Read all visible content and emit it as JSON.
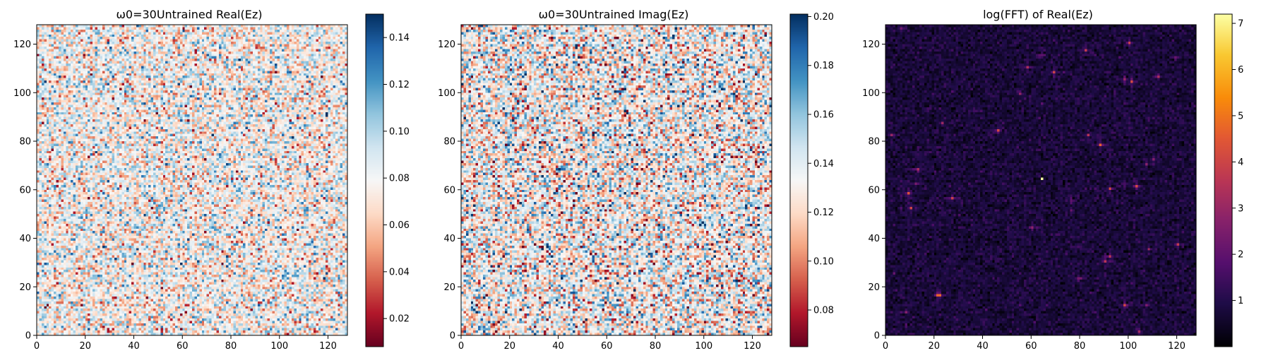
{
  "chart_data": [
    {
      "type": "heatmap",
      "title": "ω0=30Untrained Real(Ez)",
      "xlim": [
        0,
        128
      ],
      "ylim": [
        0,
        128
      ],
      "x_ticks": [
        0,
        20,
        40,
        60,
        80,
        100,
        120
      ],
      "y_ticks": [
        0,
        20,
        40,
        60,
        80,
        100,
        120
      ],
      "grid_size": 128,
      "colormap": "RdBu",
      "vmin": 0.008,
      "vmax": 0.15,
      "mean": 0.079,
      "spread": 0.022,
      "colorbar_ticks": [
        0.02,
        0.04,
        0.06,
        0.08,
        0.1,
        0.12,
        0.14
      ],
      "colorbar_tick_labels": [
        "0.02",
        "0.04",
        "0.06",
        "0.08",
        "0.10",
        "0.12",
        "0.14"
      ],
      "grid": false,
      "colorbar_position": "right"
    },
    {
      "type": "heatmap",
      "title": "ω0=30Untrained Imag(Ez)",
      "xlim": [
        0,
        128
      ],
      "ylim": [
        0,
        128
      ],
      "x_ticks": [
        0,
        20,
        40,
        60,
        80,
        100,
        120
      ],
      "y_ticks": [
        0,
        20,
        40,
        60,
        80,
        100,
        120
      ],
      "grid_size": 128,
      "colormap": "RdBu",
      "vmin": 0.065,
      "vmax": 0.201,
      "mean": 0.133,
      "spread": 0.026,
      "colorbar_ticks": [
        0.08,
        0.1,
        0.12,
        0.14,
        0.16,
        0.18,
        0.2
      ],
      "colorbar_tick_labels": [
        "0.08",
        "0.10",
        "0.12",
        "0.14",
        "0.16",
        "0.18",
        "0.20"
      ],
      "grid": false,
      "colorbar_position": "right"
    },
    {
      "type": "heatmap",
      "title": "log(FFT) of Real(Ez)",
      "xlim": [
        0,
        128
      ],
      "ylim": [
        0,
        128
      ],
      "x_ticks": [
        0,
        20,
        40,
        60,
        80,
        100,
        120
      ],
      "y_ticks": [
        0,
        20,
        40,
        60,
        80,
        100,
        120
      ],
      "grid_size": 128,
      "colormap": "inferno",
      "vmin": 0.0,
      "vmax": 7.2,
      "mean": 0.75,
      "spread": 0.3,
      "peak": {
        "x": 64,
        "y": 64,
        "value": 7.2
      },
      "colorbar_ticks": [
        1,
        2,
        3,
        4,
        5,
        6,
        7
      ],
      "colorbar_tick_labels": [
        "1",
        "2",
        "3",
        "4",
        "5",
        "6",
        "7"
      ],
      "grid": false,
      "colorbar_position": "right"
    }
  ]
}
